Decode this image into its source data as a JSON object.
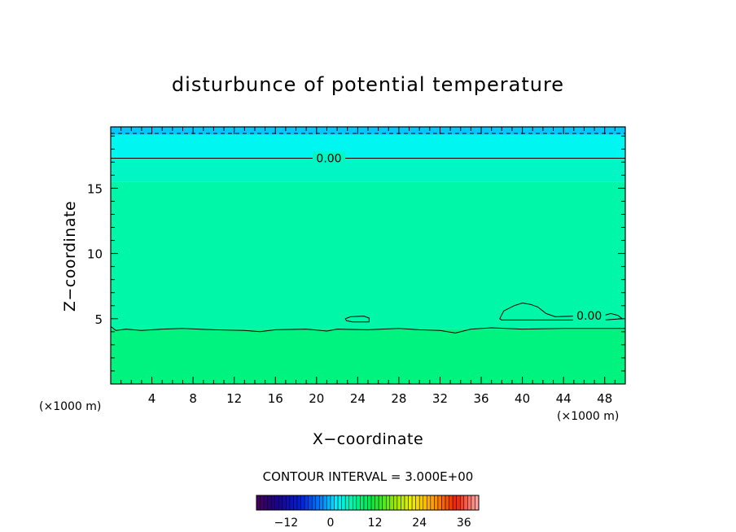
{
  "chart_data": {
    "type": "heatmap",
    "title": "disturbunce of potential temperature",
    "xlabel": "X−coordinate",
    "ylabel": "Z−coordinate",
    "x_unit": "(×1000 m)",
    "y_unit": "(×1000 m)",
    "xlim": [
      0,
      50
    ],
    "ylim": [
      0,
      19.7
    ],
    "x_ticks": [
      4,
      8,
      12,
      16,
      20,
      24,
      28,
      32,
      36,
      40,
      44,
      48
    ],
    "y_ticks": [
      5,
      10,
      15
    ],
    "field_bands": [
      {
        "z_from": 0,
        "z_to": 4.2,
        "color": "#00f37f"
      },
      {
        "z_from": 4.2,
        "z_to": 15.5,
        "color": "#00f7a8"
      },
      {
        "z_from": 15.5,
        "z_to": 17.3,
        "color": "#00f6c4"
      },
      {
        "z_from": 17.3,
        "z_to": 19.1,
        "color": "#00f6f0"
      },
      {
        "z_from": 19.1,
        "z_to": 19.7,
        "color": "#00c8ff"
      }
    ],
    "contours": [
      {
        "level": 0,
        "label": "0.00",
        "style": "solid",
        "points": [
          [
            0,
            17.3
          ],
          [
            50,
            17.3
          ]
        ]
      },
      {
        "level": 0,
        "label": "",
        "style": "solid",
        "points": [
          [
            0,
            4.4
          ],
          [
            0.5,
            4.1
          ],
          [
            1.5,
            4.2
          ],
          [
            3,
            4.1
          ],
          [
            5,
            4.2
          ],
          [
            7,
            4.25
          ],
          [
            10,
            4.15
          ],
          [
            13,
            4.1
          ],
          [
            14.5,
            4.0
          ],
          [
            16,
            4.15
          ],
          [
            19,
            4.2
          ],
          [
            21,
            4.05
          ],
          [
            22,
            4.2
          ],
          [
            25,
            4.15
          ],
          [
            28,
            4.25
          ],
          [
            30,
            4.15
          ],
          [
            32,
            4.1
          ],
          [
            33.5,
            3.9
          ],
          [
            35,
            4.2
          ],
          [
            37,
            4.3
          ],
          [
            40,
            4.2
          ],
          [
            44,
            4.25
          ],
          [
            50,
            4.25
          ]
        ]
      },
      {
        "level": 0,
        "label": "",
        "style": "solid",
        "closed": true,
        "points": [
          [
            22.8,
            5.0
          ],
          [
            23.3,
            5.15
          ],
          [
            24.6,
            5.2
          ],
          [
            25.1,
            5.05
          ],
          [
            25.1,
            4.75
          ],
          [
            23.5,
            4.75
          ],
          [
            22.9,
            4.85
          ]
        ]
      },
      {
        "level": 0,
        "label": "0.00",
        "style": "solid",
        "closed": true,
        "points": [
          [
            37.8,
            5.0
          ],
          [
            38.2,
            5.6
          ],
          [
            39.2,
            6.0
          ],
          [
            40.0,
            6.2
          ],
          [
            40.8,
            6.1
          ],
          [
            41.5,
            5.9
          ],
          [
            42.3,
            5.4
          ],
          [
            43.2,
            5.15
          ],
          [
            45.0,
            5.2
          ],
          [
            46.5,
            5.25
          ],
          [
            47.5,
            5.15
          ],
          [
            48.6,
            5.4
          ],
          [
            49.3,
            5.25
          ],
          [
            49.7,
            5.0
          ],
          [
            48.0,
            4.9
          ],
          [
            45.0,
            4.9
          ],
          [
            40.0,
            4.9
          ],
          [
            38.0,
            4.9
          ]
        ],
        "label_at": [
          46.5,
          5.25
        ]
      },
      {
        "level": -3,
        "label": "",
        "style": "dashed",
        "points": [
          [
            0,
            19.2
          ],
          [
            50,
            19.2
          ]
        ]
      }
    ],
    "contour_interval": "CONTOUR INTERVAL = 3.000E+00",
    "colorbar": {
      "range": [
        -20,
        40
      ],
      "ticks": [
        -12,
        0,
        12,
        24,
        36
      ]
    }
  }
}
